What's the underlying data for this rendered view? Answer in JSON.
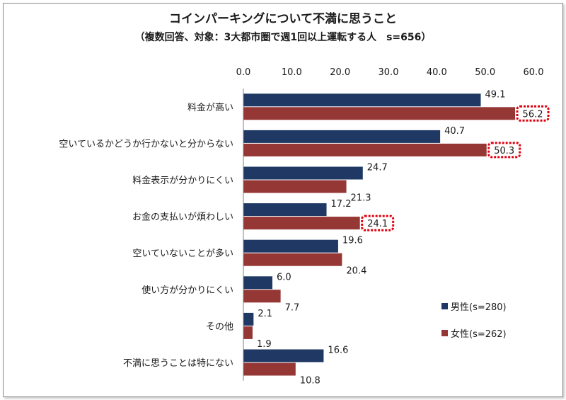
{
  "title": "コインパーキングについて不満に思うこと",
  "subtitle": "（複数回答、対象：3大都市圏で週1回以上運転する人　s=656）",
  "chart_data": {
    "type": "bar",
    "orientation": "horizontal",
    "categories": [
      "料金が高い",
      "空いているかどうか行かないと分からない",
      "料金表示が分かりにくい",
      "お金の支払いが煩わしい",
      "空いていないことが多い",
      "使い方が分かりにくい",
      "その他",
      "不満に思うことは特にない"
    ],
    "series": [
      {
        "name": "男性(s=280)",
        "color": "#1f3864",
        "values": [
          49.1,
          40.7,
          24.7,
          17.2,
          19.6,
          6.0,
          2.1,
          16.6
        ]
      },
      {
        "name": "女性(s=262)",
        "color": "#953735",
        "values": [
          56.2,
          50.3,
          21.3,
          24.1,
          20.4,
          7.7,
          1.9,
          10.8
        ]
      }
    ],
    "value_labels": [
      [
        "49.1",
        "40.7",
        "24.7",
        "17.2",
        "19.6",
        "6.0",
        "2.1",
        "16.6"
      ],
      [
        "56.2",
        "50.3",
        "21.3",
        "24.1",
        "20.4",
        "7.7",
        "1.9",
        "10.8"
      ]
    ],
    "highlighted": [
      {
        "series": 1,
        "index": 0
      },
      {
        "series": 1,
        "index": 1
      },
      {
        "series": 1,
        "index": 3
      }
    ],
    "xlim": [
      0,
      60
    ],
    "x_ticks": [
      "0.0",
      "10.0",
      "20.0",
      "30.0",
      "40.0",
      "50.0",
      "60.0"
    ],
    "x_axis_position": "top",
    "grid": false,
    "legend_position": "bottom-right",
    "highlight_color": "#e0000f"
  }
}
